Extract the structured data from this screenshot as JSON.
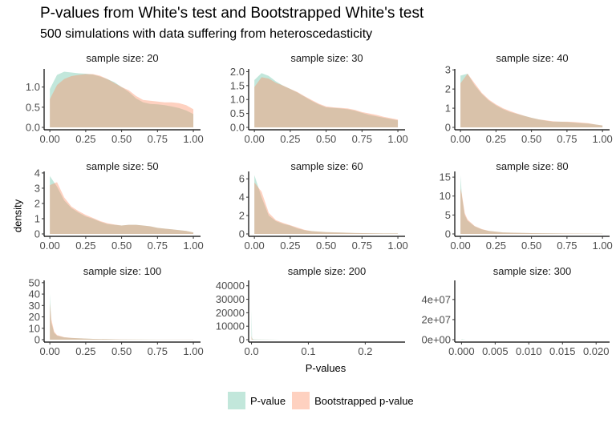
{
  "chart_data": {
    "type": "area",
    "title": "P-values from White's test and Bootstrapped White's test",
    "subtitle": "500 simulations with data suffering from heteroscedasticity",
    "xlabel": "P-values",
    "ylabel": "density",
    "legend_placement": "bottom",
    "grid": false,
    "series_names": [
      "P-value",
      "Bootstrapped p-value"
    ],
    "colors": {
      "P-value": "#66c2a5",
      "Bootstrapped p-value": "#fc8d62"
    },
    "panels": [
      {
        "title": "sample size: 20",
        "xlim": [
          -0.04,
          1.05
        ],
        "ylim": [
          0,
          1.45
        ],
        "xticks": [
          "0.00",
          "0.25",
          "0.50",
          "0.75",
          "1.00"
        ],
        "xtick_values": [
          0,
          0.25,
          0.5,
          0.75,
          1
        ],
        "yticks": [
          "0.0",
          "0.5",
          "1.0"
        ],
        "ytick_values": [
          0,
          0.5,
          1.0
        ],
        "x": [
          0,
          0.05,
          0.1,
          0.15,
          0.2,
          0.25,
          0.3,
          0.35,
          0.4,
          0.45,
          0.5,
          0.55,
          0.6,
          0.65,
          0.7,
          0.75,
          0.8,
          0.85,
          0.9,
          0.95,
          1
        ],
        "pvalue": [
          0.95,
          1.3,
          1.38,
          1.36,
          1.34,
          1.33,
          1.31,
          1.26,
          1.2,
          1.12,
          1.0,
          0.88,
          0.72,
          0.62,
          0.58,
          0.57,
          0.55,
          0.52,
          0.48,
          0.42,
          0.33
        ],
        "bootstrapped": [
          0.7,
          1.05,
          1.2,
          1.27,
          1.3,
          1.32,
          1.32,
          1.28,
          1.2,
          1.1,
          1.0,
          0.92,
          0.78,
          0.68,
          0.66,
          0.64,
          0.62,
          0.62,
          0.6,
          0.55,
          0.45
        ]
      },
      {
        "title": "sample size: 30",
        "xlim": [
          -0.04,
          1.05
        ],
        "ylim": [
          0,
          2.1
        ],
        "xticks": [
          "0.00",
          "0.25",
          "0.50",
          "0.75",
          "1.00"
        ],
        "xtick_values": [
          0,
          0.25,
          0.5,
          0.75,
          1
        ],
        "yticks": [
          "0.0",
          "0.5",
          "1.0",
          "1.5",
          "2.0"
        ],
        "ytick_values": [
          0,
          0.5,
          1,
          1.5,
          2
        ],
        "x": [
          0,
          0.05,
          0.1,
          0.15,
          0.2,
          0.25,
          0.3,
          0.35,
          0.4,
          0.45,
          0.5,
          0.55,
          0.6,
          0.65,
          0.7,
          0.75,
          0.8,
          0.85,
          0.9,
          0.95,
          1
        ],
        "pvalue": [
          1.7,
          1.95,
          1.85,
          1.65,
          1.5,
          1.38,
          1.25,
          1.1,
          0.95,
          0.82,
          0.72,
          0.7,
          0.68,
          0.65,
          0.6,
          0.52,
          0.45,
          0.4,
          0.35,
          0.3,
          0.25
        ],
        "bootstrapped": [
          1.45,
          1.8,
          1.75,
          1.6,
          1.5,
          1.38,
          1.27,
          1.12,
          0.98,
          0.85,
          0.75,
          0.72,
          0.7,
          0.68,
          0.63,
          0.55,
          0.5,
          0.45,
          0.38,
          0.33,
          0.28
        ]
      },
      {
        "title": "sample size: 40",
        "xlim": [
          -0.04,
          1.05
        ],
        "ylim": [
          0,
          3.05
        ],
        "xticks": [
          "0.00",
          "0.25",
          "0.50",
          "0.75",
          "1.00"
        ],
        "xtick_values": [
          0,
          0.25,
          0.5,
          0.75,
          1
        ],
        "yticks": [
          "0",
          "1",
          "2",
          "3"
        ],
        "ytick_values": [
          0,
          1,
          2,
          3
        ],
        "x": [
          0,
          0.05,
          0.1,
          0.15,
          0.2,
          0.25,
          0.3,
          0.35,
          0.4,
          0.45,
          0.5,
          0.55,
          0.6,
          0.65,
          0.7,
          0.75,
          0.8,
          0.85,
          0.9,
          0.95,
          1
        ],
        "pvalue": [
          2.7,
          2.8,
          2.2,
          1.75,
          1.4,
          1.15,
          0.95,
          0.8,
          0.7,
          0.6,
          0.5,
          0.42,
          0.35,
          0.3,
          0.3,
          0.28,
          0.25,
          0.22,
          0.2,
          0.15,
          0.1
        ],
        "bootstrapped": [
          2.3,
          2.8,
          2.3,
          1.8,
          1.45,
          1.2,
          1.0,
          0.85,
          0.72,
          0.6,
          0.5,
          0.42,
          0.37,
          0.32,
          0.3,
          0.3,
          0.28,
          0.25,
          0.22,
          0.15,
          0.1
        ]
      },
      {
        "title": "sample size: 50",
        "xlim": [
          -0.04,
          1.05
        ],
        "ylim": [
          0,
          4.1
        ],
        "xticks": [
          "0.00",
          "0.25",
          "0.50",
          "0.75",
          "1.00"
        ],
        "xtick_values": [
          0,
          0.25,
          0.5,
          0.75,
          1
        ],
        "yticks": [
          "0",
          "1",
          "2",
          "3",
          "4"
        ],
        "ytick_values": [
          0,
          1,
          2,
          3,
          4
        ],
        "x": [
          0,
          0.05,
          0.1,
          0.15,
          0.2,
          0.25,
          0.3,
          0.35,
          0.4,
          0.45,
          0.5,
          0.55,
          0.6,
          0.65,
          0.7,
          0.75,
          0.8,
          0.85,
          0.9,
          0.95,
          1
        ],
        "pvalue": [
          3.8,
          3.1,
          2.2,
          1.7,
          1.4,
          1.15,
          1.0,
          0.8,
          0.65,
          0.6,
          0.55,
          0.6,
          0.6,
          0.55,
          0.5,
          0.4,
          0.35,
          0.3,
          0.25,
          0.2,
          0.1
        ],
        "bootstrapped": [
          3.2,
          3.4,
          2.4,
          1.8,
          1.5,
          1.25,
          1.05,
          0.85,
          0.7,
          0.62,
          0.55,
          0.6,
          0.6,
          0.55,
          0.5,
          0.4,
          0.35,
          0.3,
          0.25,
          0.2,
          0.1
        ]
      },
      {
        "title": "sample size: 60",
        "xlim": [
          -0.04,
          1.05
        ],
        "ylim": [
          0,
          6.8
        ],
        "xticks": [
          "0.00",
          "0.25",
          "0.50",
          "0.75",
          "1.00"
        ],
        "xtick_values": [
          0,
          0.25,
          0.5,
          0.75,
          1
        ],
        "yticks": [
          "0",
          "2",
          "4",
          "6"
        ],
        "ytick_values": [
          0,
          2,
          4,
          6
        ],
        "x": [
          0,
          0.05,
          0.1,
          0.15,
          0.2,
          0.25,
          0.3,
          0.35,
          0.4,
          0.45,
          0.5,
          0.6,
          0.7,
          0.8,
          0.9,
          1
        ],
        "pvalue": [
          6.4,
          4.0,
          2.0,
          1.4,
          1.1,
          0.9,
          0.6,
          0.4,
          0.3,
          0.25,
          0.2,
          0.15,
          0.1,
          0.08,
          0.05,
          0.05
        ],
        "bootstrapped": [
          5.6,
          4.6,
          2.3,
          1.5,
          1.2,
          0.95,
          0.7,
          0.45,
          0.3,
          0.25,
          0.2,
          0.15,
          0.1,
          0.08,
          0.05,
          0.05
        ]
      },
      {
        "title": "sample size: 80",
        "xlim": [
          -0.04,
          1.05
        ],
        "ylim": [
          0,
          16.5
        ],
        "xticks": [
          "0.00",
          "0.25",
          "0.50",
          "0.75",
          "1.00"
        ],
        "xtick_values": [
          0,
          0.25,
          0.5,
          0.75,
          1
        ],
        "yticks": [
          "0",
          "5",
          "10",
          "15"
        ],
        "ytick_values": [
          0,
          5,
          10,
          15
        ],
        "x": [
          0,
          0.01,
          0.03,
          0.05,
          0.1,
          0.15,
          0.2,
          0.3,
          0.5,
          0.75,
          1
        ],
        "pvalue": [
          15.5,
          10,
          5,
          3.5,
          2,
          1.2,
          0.8,
          0.4,
          0.2,
          0.1,
          0.05
        ],
        "bootstrapped": [
          12,
          10.5,
          5.5,
          3.8,
          2.1,
          1.3,
          0.8,
          0.4,
          0.2,
          0.1,
          0.05
        ]
      },
      {
        "title": "sample size: 100",
        "xlim": [
          -0.04,
          1.05
        ],
        "ylim": [
          0,
          52
        ],
        "xticks": [
          "0.00",
          "0.25",
          "0.50",
          "0.75",
          "1.00"
        ],
        "xtick_values": [
          0,
          0.25,
          0.5,
          0.75,
          1
        ],
        "yticks": [
          "0",
          "10",
          "20",
          "30",
          "40",
          "50"
        ],
        "ytick_values": [
          0,
          10,
          20,
          30,
          40,
          50
        ],
        "x": [
          0,
          0.01,
          0.03,
          0.05,
          0.1,
          0.15,
          0.2,
          0.3,
          0.5,
          0.75,
          1
        ],
        "pvalue": [
          40,
          15,
          6,
          3.5,
          2,
          1.5,
          1.2,
          0.7,
          0.3,
          0.1,
          0.05
        ],
        "bootstrapped": [
          32,
          18,
          7,
          4,
          2.2,
          1.6,
          1.2,
          0.7,
          0.3,
          0.1,
          0.05
        ]
      },
      {
        "title": "sample size: 200",
        "xlim": [
          -0.005,
          0.27
        ],
        "ylim": [
          0,
          44000
        ],
        "xticks": [
          "0.0",
          "0.1",
          "0.2"
        ],
        "xtick_values": [
          0,
          0.1,
          0.2
        ],
        "yticks": [
          "0",
          "10000",
          "20000",
          "30000",
          "40000"
        ],
        "ytick_values": [
          0,
          10000,
          20000,
          30000,
          40000
        ],
        "x": [
          0,
          0.001,
          0.002,
          0.004,
          0.01,
          0.05,
          0.27
        ],
        "pvalue": [
          22000,
          1500,
          500,
          300,
          200,
          0,
          0
        ],
        "bootstrapped": [
          3000,
          800,
          300,
          100,
          50,
          0,
          0
        ]
      },
      {
        "title": "sample size: 300",
        "xlim": [
          -0.001,
          0.022
        ],
        "ylim": [
          0,
          59000000.0
        ],
        "xticks": [
          "0.000",
          "0.005",
          "0.010",
          "0.015",
          "0.020"
        ],
        "xtick_values": [
          0,
          0.005,
          0.01,
          0.015,
          0.02
        ],
        "yticks": [
          "0e+00",
          "2e+07",
          "4e+07"
        ],
        "ytick_values": [
          0,
          20000000.0,
          40000000.0
        ],
        "x": [
          0,
          0.0003,
          0.0006,
          0.001,
          0.022
        ],
        "pvalue": [
          500000.0,
          200000.0,
          0,
          0,
          0
        ],
        "bootstrapped": [
          100000.0,
          0,
          0,
          0,
          0
        ]
      }
    ]
  }
}
